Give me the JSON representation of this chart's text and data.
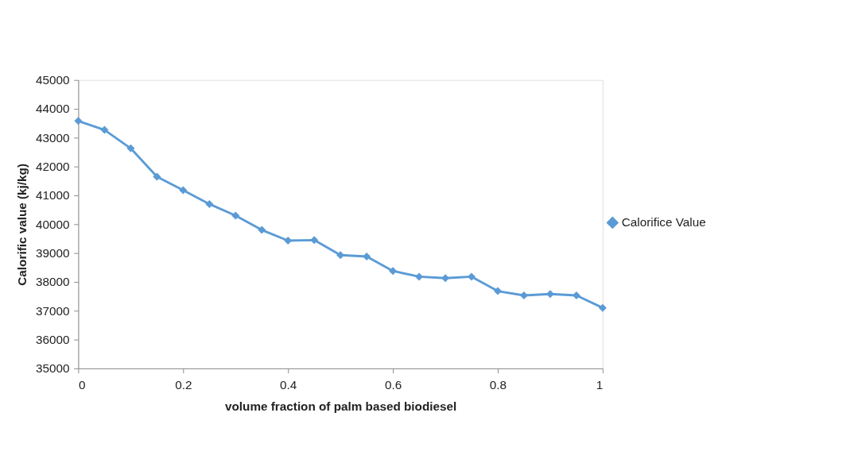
{
  "chart_data": {
    "type": "line",
    "xlabel": "volume fraction of palm based biodiesel",
    "ylabel": "Calorific value (kj/kg)",
    "x": [
      0,
      0.05,
      0.1,
      0.15,
      0.2,
      0.25,
      0.3,
      0.35,
      0.4,
      0.45,
      0.5,
      0.55,
      0.6,
      0.65,
      0.7,
      0.75,
      0.8,
      0.85,
      0.9,
      0.95,
      1
    ],
    "series": [
      {
        "name": "Calorifice Value",
        "color": "#5b9bd5",
        "values": [
          43580,
          43270,
          42630,
          41650,
          41180,
          40700,
          40300,
          39800,
          39430,
          39450,
          38930,
          38880,
          38380,
          38180,
          38130,
          38180,
          37680,
          37530,
          37580,
          37530,
          37100
        ]
      }
    ],
    "xlim": [
      0,
      1
    ],
    "xticks": [
      {
        "value": 0,
        "label": "0"
      },
      0.2,
      0.4,
      0.6,
      0.8,
      {
        "value": 1,
        "label": "1"
      }
    ],
    "ylim": [
      35000,
      45000
    ],
    "yticks": [
      35000,
      36000,
      37000,
      38000,
      39000,
      40000,
      41000,
      42000,
      43000,
      44000,
      45000
    ],
    "grid": false,
    "legend": "right",
    "marker": "diamond",
    "line_style": "solid"
  }
}
